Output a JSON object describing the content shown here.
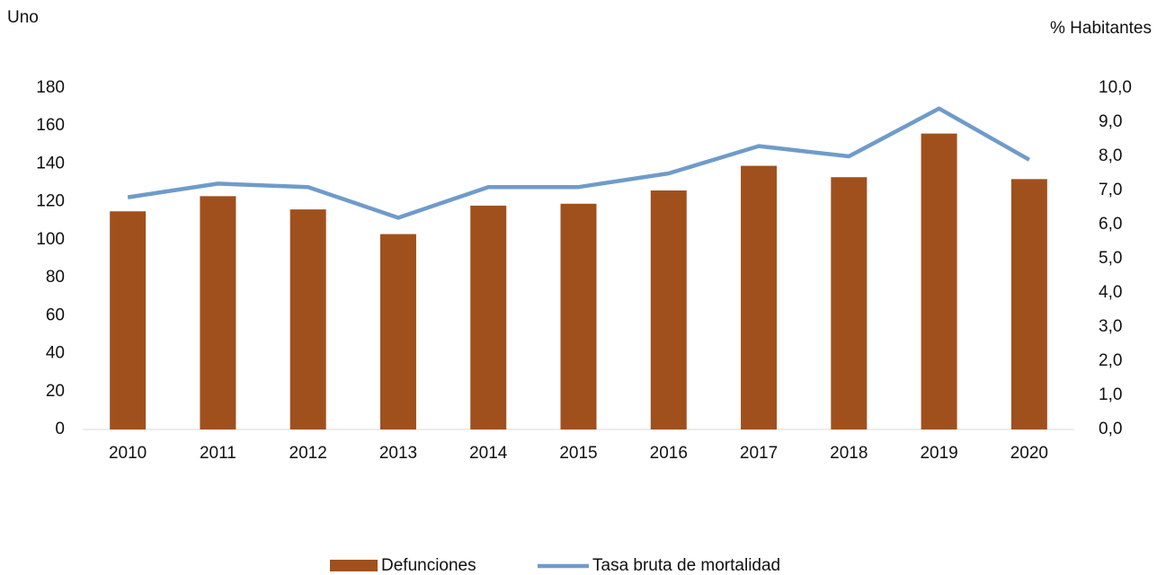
{
  "chart_data": {
    "type": "bar_line",
    "y_label": "Uno",
    "y2_label": "% Habitantes",
    "categories": [
      "2010",
      "2011",
      "2012",
      "2013",
      "2014",
      "2015",
      "2016",
      "2017",
      "2018",
      "2019",
      "2020"
    ],
    "series": [
      {
        "name": "Defunciones",
        "type": "bar",
        "color": "#a0501c",
        "values": [
          115,
          123,
          116,
          103,
          118,
          119,
          126,
          139,
          133,
          156,
          132
        ]
      },
      {
        "name": "Tasa bruta de mortalidad",
        "type": "line",
        "axis": "y2",
        "color": "#6f9bca",
        "values": [
          6.8,
          7.2,
          7.1,
          6.2,
          7.1,
          7.1,
          7.5,
          8.3,
          8.0,
          9.4,
          7.9
        ]
      }
    ],
    "ylim": [
      0,
      180
    ],
    "yticks": [
      0,
      20,
      40,
      60,
      80,
      100,
      120,
      140,
      160,
      180
    ],
    "y2lim": [
      0,
      10
    ],
    "y2ticks": [
      {
        "value": 0,
        "label": "0,0"
      },
      {
        "value": 1,
        "label": "1,0"
      },
      {
        "value": 2,
        "label": "2,0"
      },
      {
        "value": 3,
        "label": "3,0"
      },
      {
        "value": 4,
        "label": "4,0"
      },
      {
        "value": 5,
        "label": "5,0"
      },
      {
        "value": 6,
        "label": "6,0"
      },
      {
        "value": 7,
        "label": "7,0"
      },
      {
        "value": 8,
        "label": "8,0"
      },
      {
        "value": 9,
        "label": "9,0"
      },
      {
        "value": 10,
        "label": "10,0"
      }
    ],
    "grid": false,
    "legend": "bottom"
  }
}
